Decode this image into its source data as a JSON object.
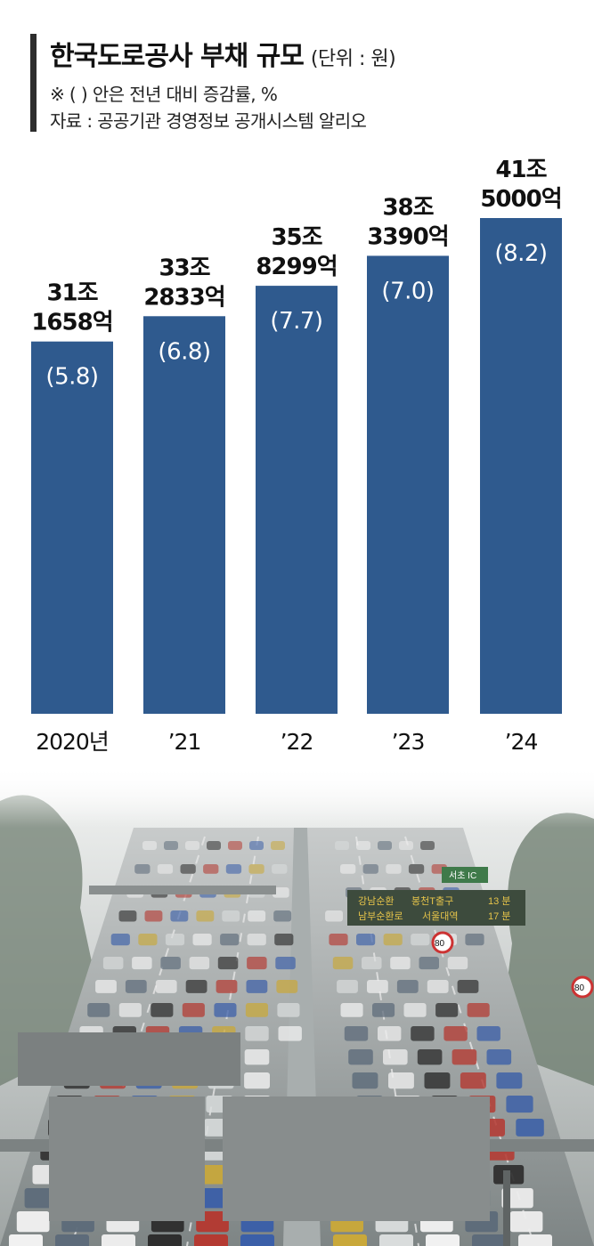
{
  "header": {
    "title": "한국도로공사 부채 규모",
    "unit": "(단위 : 원)",
    "note": "※ (  ) 안은 전년 대비 증감률, %",
    "source": "자료 : 공공기관 경영정보 공개시스템 알리오"
  },
  "colors": {
    "bar": "#2f5a8e",
    "bar_label": "#ffffff",
    "value_label": "#111111"
  },
  "chart_data": {
    "type": "bar",
    "title": "한국도로공사 부채 규모",
    "unit": "원",
    "categories": [
      "2020년",
      "’21",
      "’22",
      "’23",
      "’24"
    ],
    "values_eok": [
      311658,
      332833,
      358299,
      383390,
      415000
    ],
    "value_labels_line1": [
      "31조",
      "33조",
      "35조",
      "38조",
      "41조"
    ],
    "value_labels_line2": [
      "1658억",
      "2833억",
      "8299억",
      "3390억",
      "5000억"
    ],
    "growth_rate_pct": [
      5.8,
      6.8,
      7.7,
      7.0,
      8.2
    ],
    "growth_labels": [
      "(5.8)",
      "(6.8)",
      "(7.7)",
      "(7.0)",
      "(8.2)"
    ],
    "legend": "none",
    "grid": false
  },
  "photo": {
    "description_icon": "highway-traffic-photo",
    "sign_line1_left": "강남순환",
    "sign_line1_right": "봉천T출구",
    "sign_line1_time": "13 분",
    "sign_line2_left": "남부순환로",
    "sign_line2_right": "서울대역",
    "sign_line2_time": "17 분",
    "ic_sign": "서초 IC",
    "speed_sign": "80",
    "speed_sign_right": "80"
  }
}
